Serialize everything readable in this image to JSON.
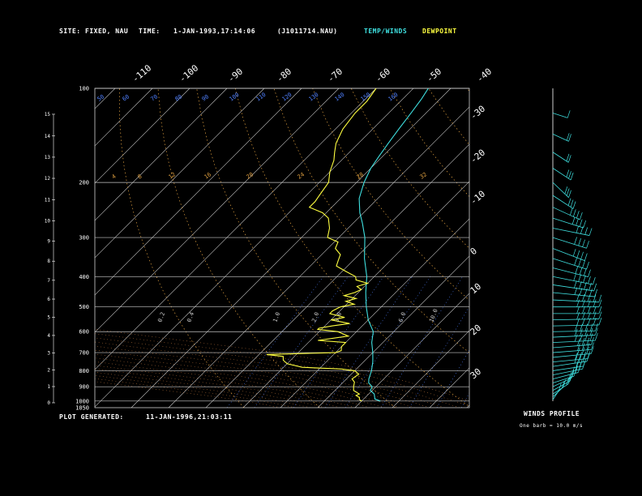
{
  "header": {
    "site_label": "SITE:",
    "site_value": "FIXED, NAU",
    "time_label": "TIME:",
    "time_value": "1-JAN-1993,17:14:06",
    "file_value": "(J1011714.NAU)",
    "legend_temp": "TEMP/WINDS",
    "legend_dew": "DEWPOINT"
  },
  "footer": {
    "generated_label": "PLOT GENERATED:",
    "generated_value": "11-JAN-1996,21:03:11"
  },
  "winds_panel": {
    "title": "WINDS PROFILE",
    "subtitle": "One barb = 10.0 m/s"
  },
  "colors": {
    "temperature": "#3fe0e0",
    "dewpoint": "#ffff40",
    "isotherm": "#c8c8c8",
    "isobar": "#c8c8c8",
    "dry_adiabat": "#e0a040",
    "moist_adiabat": "#d08040",
    "mixing_ratio": "#5080ff",
    "wind_barb": "#3fe0e0"
  },
  "chart_data": {
    "type": "line",
    "subtype": "skew-T log-P sounding",
    "x_axis": {
      "label": "",
      "unit": "deg C",
      "range": [
        -70,
        40
      ],
      "skewed": true
    },
    "y_axis": {
      "label": "",
      "unit": "hPa",
      "scale": "log",
      "range": [
        1050,
        100
      ],
      "inverted": true
    },
    "pressure_ticks": [
      "100",
      "200",
      "300",
      "400",
      "500",
      "600",
      "700",
      "800",
      "900",
      "1000",
      "1050"
    ],
    "height_ticks_km": [
      "0",
      "1",
      "2",
      "3",
      "4",
      "5",
      "6",
      "7",
      "8",
      "9",
      "10",
      "11",
      "12",
      "13",
      "14",
      "15"
    ],
    "top_temp_ticks": [
      "-110",
      "-100",
      "-90",
      "-80",
      "-70",
      "-60",
      "-50",
      "-40"
    ],
    "right_temp_ticks": [
      "-30",
      "-20",
      "-10",
      "0",
      "10",
      "20",
      "30"
    ],
    "dry_adiabat_labels": [
      "4",
      "8",
      "12",
      "16",
      "20",
      "24",
      "28",
      "32"
    ],
    "moist_adiabat_labels": [
      "50",
      "60",
      "70",
      "80",
      "90",
      "100",
      "110",
      "120",
      "130",
      "140",
      "150",
      "160"
    ],
    "mixing_ratio_labels": [
      "0.2",
      "0.4",
      "1.0",
      "2.0",
      "3.0",
      "6.0",
      "10.0"
    ],
    "series": [
      {
        "name": "TEMP/WINDS",
        "points": [
          [
            1000,
            5
          ],
          [
            985,
            3
          ],
          [
            950,
            1.5
          ],
          [
            925,
            -0.5
          ],
          [
            900,
            -1
          ],
          [
            875,
            -3
          ],
          [
            850,
            -4
          ],
          [
            800,
            -5.5
          ],
          [
            750,
            -7.5
          ],
          [
            700,
            -10
          ],
          [
            650,
            -13
          ],
          [
            600,
            -15.5
          ],
          [
            550,
            -20
          ],
          [
            500,
            -24
          ],
          [
            450,
            -28
          ],
          [
            400,
            -32
          ],
          [
            350,
            -37.5
          ],
          [
            300,
            -43
          ],
          [
            270,
            -47.5
          ],
          [
            250,
            -51
          ],
          [
            225,
            -55
          ],
          [
            200,
            -58
          ],
          [
            180,
            -60
          ],
          [
            165,
            -61
          ],
          [
            150,
            -62
          ],
          [
            135,
            -63
          ],
          [
            120,
            -64
          ],
          [
            108,
            -65
          ],
          [
            100,
            -66
          ]
        ]
      },
      {
        "name": "DEWPOINT",
        "points": [
          [
            1000,
            0
          ],
          [
            990,
            -1
          ],
          [
            975,
            -1.5
          ],
          [
            960,
            -3
          ],
          [
            950,
            -2.5
          ],
          [
            925,
            -5
          ],
          [
            900,
            -6
          ],
          [
            870,
            -7
          ],
          [
            850,
            -8.5
          ],
          [
            820,
            -8
          ],
          [
            800,
            -10
          ],
          [
            790,
            -14
          ],
          [
            780,
            -25
          ],
          [
            760,
            -30
          ],
          [
            740,
            -32
          ],
          [
            720,
            -33
          ],
          [
            710,
            -38
          ],
          [
            700,
            -20
          ],
          [
            690,
            -19
          ],
          [
            670,
            -20
          ],
          [
            650,
            -20
          ],
          [
            640,
            -28
          ],
          [
            620,
            -21
          ],
          [
            600,
            -25
          ],
          [
            590,
            -31
          ],
          [
            585,
            -31
          ],
          [
            575,
            -28
          ],
          [
            565,
            -24
          ],
          [
            550,
            -30
          ],
          [
            540,
            -27
          ],
          [
            525,
            -32
          ],
          [
            515,
            -32
          ],
          [
            500,
            -31
          ],
          [
            490,
            -28
          ],
          [
            480,
            -31
          ],
          [
            470,
            -29
          ],
          [
            460,
            -33
          ],
          [
            450,
            -31
          ],
          [
            440,
            -30
          ],
          [
            430,
            -32
          ],
          [
            420,
            -30
          ],
          [
            410,
            -34
          ],
          [
            400,
            -35
          ],
          [
            385,
            -39
          ],
          [
            370,
            -43
          ],
          [
            355,
            -44
          ],
          [
            340,
            -45
          ],
          [
            325,
            -48
          ],
          [
            310,
            -49
          ],
          [
            300,
            -53
          ],
          [
            280,
            -55
          ],
          [
            260,
            -58
          ],
          [
            250,
            -61
          ],
          [
            240,
            -66
          ],
          [
            230,
            -66
          ],
          [
            220,
            -66.5
          ],
          [
            210,
            -67
          ],
          [
            200,
            -67.5
          ],
          [
            185,
            -70
          ],
          [
            170,
            -72
          ],
          [
            160,
            -74
          ],
          [
            150,
            -76
          ],
          [
            135,
            -78
          ],
          [
            120,
            -79
          ],
          [
            110,
            -79
          ],
          [
            100,
            -80
          ]
        ]
      }
    ],
    "winds": [
      {
        "p": 990,
        "speed": 10,
        "dir": 200
      },
      {
        "p": 970,
        "speed": 15,
        "dir": 210
      },
      {
        "p": 950,
        "speed": 20,
        "dir": 220
      },
      {
        "p": 925,
        "speed": 20,
        "dir": 225
      },
      {
        "p": 900,
        "speed": 20,
        "dir": 230
      },
      {
        "p": 875,
        "speed": 20,
        "dir": 240
      },
      {
        "p": 850,
        "speed": 25,
        "dir": 245
      },
      {
        "p": 825,
        "speed": 30,
        "dir": 250
      },
      {
        "p": 800,
        "speed": 30,
        "dir": 255
      },
      {
        "p": 775,
        "speed": 35,
        "dir": 255
      },
      {
        "p": 750,
        "speed": 35,
        "dir": 260
      },
      {
        "p": 725,
        "speed": 40,
        "dir": 260
      },
      {
        "p": 700,
        "speed": 40,
        "dir": 262
      },
      {
        "p": 675,
        "speed": 40,
        "dir": 262
      },
      {
        "p": 650,
        "speed": 45,
        "dir": 265
      },
      {
        "p": 625,
        "speed": 45,
        "dir": 265
      },
      {
        "p": 600,
        "speed": 45,
        "dir": 268
      },
      {
        "p": 575,
        "speed": 50,
        "dir": 268
      },
      {
        "p": 550,
        "speed": 50,
        "dir": 268
      },
      {
        "p": 525,
        "speed": 50,
        "dir": 270
      },
      {
        "p": 500,
        "speed": 50,
        "dir": 270
      },
      {
        "p": 475,
        "speed": 50,
        "dir": 275
      },
      {
        "p": 450,
        "speed": 45,
        "dir": 280
      },
      {
        "p": 425,
        "speed": 45,
        "dir": 285
      },
      {
        "p": 400,
        "speed": 45,
        "dir": 290
      },
      {
        "p": 375,
        "speed": 40,
        "dir": 295
      },
      {
        "p": 350,
        "speed": 40,
        "dir": 300
      },
      {
        "p": 325,
        "speed": 40,
        "dir": 305
      },
      {
        "p": 300,
        "speed": 40,
        "dir": 300
      },
      {
        "p": 280,
        "speed": 40,
        "dir": 290
      },
      {
        "p": 260,
        "speed": 35,
        "dir": 300
      },
      {
        "p": 240,
        "speed": 35,
        "dir": 310
      },
      {
        "p": 220,
        "speed": 30,
        "dir": 320
      },
      {
        "p": 200,
        "speed": 30,
        "dir": 330
      },
      {
        "p": 180,
        "speed": 25,
        "dir": 320
      },
      {
        "p": 160,
        "speed": 20,
        "dir": 320
      },
      {
        "p": 140,
        "speed": 15,
        "dir": 310
      },
      {
        "p": 120,
        "speed": 10,
        "dir": 300
      }
    ]
  }
}
